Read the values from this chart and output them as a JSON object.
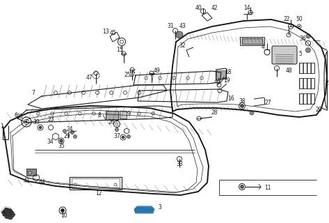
{
  "bg_color": "#ffffff",
  "line_color": "#1a1a1a",
  "fig_width": 4.73,
  "fig_height": 3.2,
  "dpi": 100,
  "lw_thick": 1.4,
  "lw_med": 0.8,
  "lw_thin": 0.5,
  "label_fs": 5.5,
  "hatch_color": "#555555",
  "gray_fill": "#888888",
  "dark_fill": "#333333"
}
